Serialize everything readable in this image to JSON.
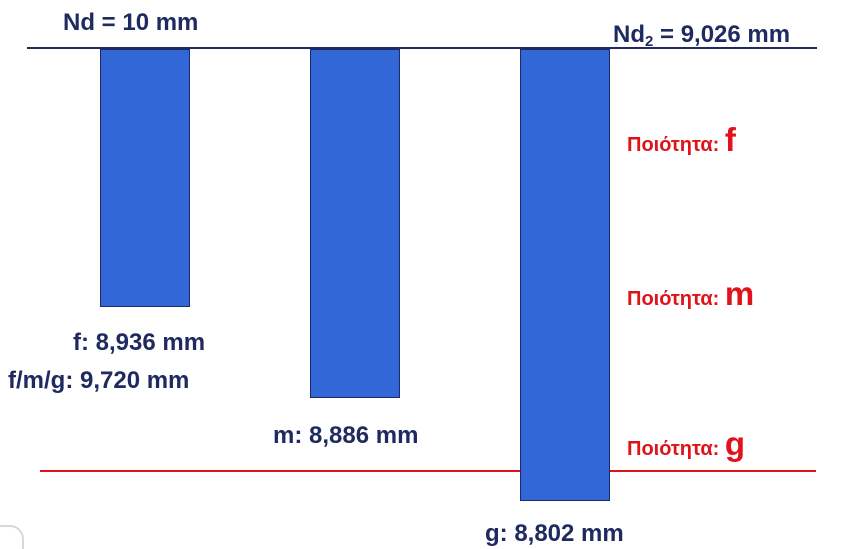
{
  "header": {
    "nominal": "Nd = 10 mm",
    "nd2_prefix": "Nd",
    "nd2_sub": "2",
    "nd2_suffix": " = 9,026 mm"
  },
  "bars": {
    "f": {
      "label": "f: 8,936 mm",
      "value": 8.936
    },
    "fmg": {
      "label": "f/m/g: 9,720 mm"
    },
    "m": {
      "label": "m: 8,886 mm",
      "value": 8.886
    },
    "g": {
      "label": "g: 8,802 mm",
      "value": 8.802
    }
  },
  "quality": {
    "prefix": "Ποιότητα: ",
    "f": "f",
    "m": "m",
    "g": "g"
  },
  "colors": {
    "bar_fill": "#3366d6",
    "bar_border": "#1b2a6b",
    "top_line": "#1f2a60",
    "limit_line": "#e0131b",
    "text_navy": "#1f2a60",
    "text_red": "#e0131b"
  }
}
